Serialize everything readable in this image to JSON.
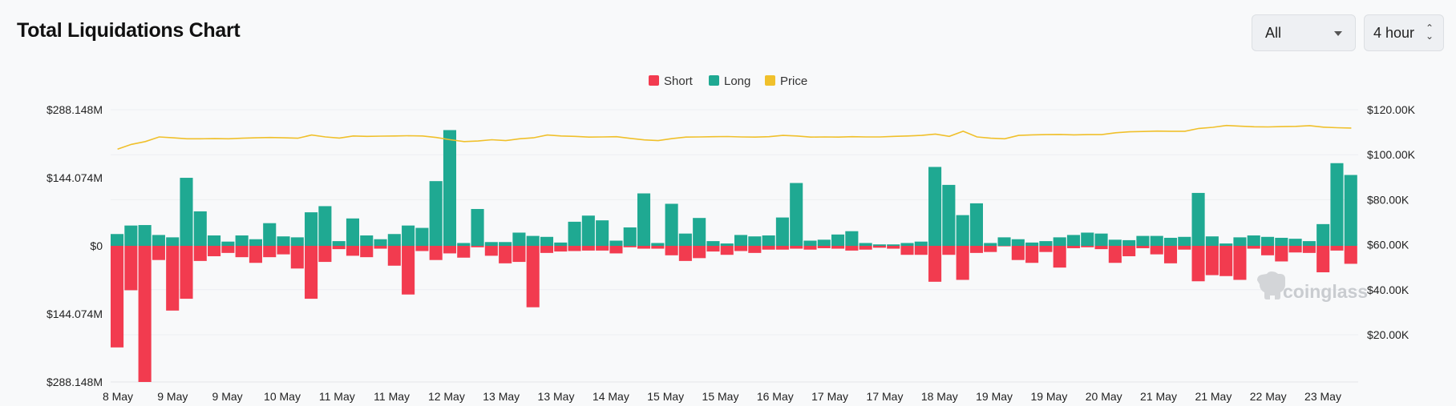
{
  "header": {
    "title": "Total Liquidations Chart",
    "range_select": "All",
    "interval_select": "4 hour"
  },
  "watermark": "coinglass",
  "chart_data": {
    "type": "bar",
    "colors": {
      "short": "#f23b4f",
      "long": "#1fa992",
      "price": "#f0c02b"
    },
    "legend": {
      "position": "top-center",
      "items": [
        "Short",
        "Long",
        "Price"
      ]
    },
    "grid": true,
    "y_left": {
      "ticks": [
        "$288.148M",
        "$144.074M",
        "$0",
        "$144.074M",
        "$288.148M"
      ],
      "range": [
        -288.148,
        288.148
      ],
      "unit": "M USD"
    },
    "y_right": {
      "ticks": [
        "$120.00K",
        "$100.00K",
        "$80.00K",
        "$60.00K",
        "$40.00K",
        "$20.00K"
      ],
      "range": [
        0,
        120000
      ]
    },
    "x_labels": [
      "8 May",
      "9 May",
      "9 May",
      "10 May",
      "11 May",
      "11 May",
      "12 May",
      "13 May",
      "13 May",
      "14 May",
      "15 May",
      "15 May",
      "16 May",
      "17 May",
      "17 May",
      "18 May",
      "19 May",
      "19 May",
      "20 May",
      "21 May",
      "21 May",
      "22 May",
      "23 May"
    ],
    "series": [
      {
        "name": "Long",
        "values": [
          25,
          43,
          44,
          23,
          18,
          144,
          73,
          22,
          9,
          22,
          14,
          48,
          20,
          18,
          71,
          84,
          10,
          58,
          22,
          14,
          25,
          43,
          38,
          137,
          245,
          6,
          78,
          8,
          8,
          28,
          21,
          19,
          7,
          51,
          64,
          54,
          11,
          39,
          111,
          6,
          89,
          26,
          59,
          10,
          5,
          23,
          20,
          22,
          60,
          133,
          11,
          13,
          24,
          31,
          6,
          3,
          3,
          6,
          9,
          167,
          129,
          65,
          90,
          6,
          18,
          14,
          7,
          10,
          18,
          23,
          28,
          26,
          13,
          12,
          21,
          21,
          17,
          19,
          112,
          20,
          5,
          18,
          22,
          19,
          17,
          15,
          10,
          46,
          175,
          150
        ]
      },
      {
        "name": "Short",
        "values": [
          -215,
          -94,
          -290,
          -30,
          -137,
          -112,
          -32,
          -22,
          -15,
          -24,
          -36,
          -24,
          -18,
          -48,
          -112,
          -34,
          -7,
          -21,
          -24,
          -6,
          -42,
          -103,
          -11,
          -30,
          -16,
          -25,
          -3,
          -21,
          -37,
          -34,
          -130,
          -15,
          -12,
          -11,
          -10,
          -10,
          -16,
          -3,
          -6,
          -6,
          -20,
          -32,
          -26,
          -12,
          -19,
          -11,
          -15,
          -8,
          -8,
          -6,
          -8,
          -5,
          -6,
          -10,
          -8,
          -4,
          -6,
          -19,
          -19,
          -76,
          -19,
          -72,
          -15,
          -13,
          -1,
          -30,
          -36,
          -13,
          -46,
          -5,
          -3,
          -7,
          -36,
          -22,
          -5,
          -18,
          -37,
          -8,
          -75,
          -62,
          -64,
          -72,
          -6,
          -20,
          -33,
          -14,
          -15,
          -56,
          -10,
          -38
        ]
      },
      {
        "name": "Price",
        "values": [
          99000,
          101500,
          103000,
          105500,
          105000,
          104500,
          104500,
          104600,
          104500,
          104800,
          105000,
          105200,
          105000,
          104800,
          106500,
          105500,
          104900,
          106000,
          105800,
          105900,
          106000,
          106100,
          106000,
          105200,
          104000,
          103000,
          103300,
          104000,
          103500,
          104500,
          105000,
          106500,
          106000,
          105800,
          105400,
          105500,
          105600,
          104700,
          103900,
          103500,
          104600,
          105400,
          105500,
          105600,
          105700,
          105500,
          105400,
          105600,
          106300,
          106000,
          105400,
          105500,
          105400,
          105600,
          105500,
          105500,
          105800,
          106000,
          106300,
          107000,
          105800,
          108500,
          105500,
          104800,
          104500,
          106300,
          106600,
          106700,
          106800,
          106600,
          106700,
          106700,
          107700,
          108200,
          108400,
          108600,
          108500,
          108500,
          110000,
          110600,
          111600,
          111200,
          110900,
          110800,
          111000,
          111100,
          111500,
          110700,
          110400,
          110200
        ]
      }
    ]
  }
}
